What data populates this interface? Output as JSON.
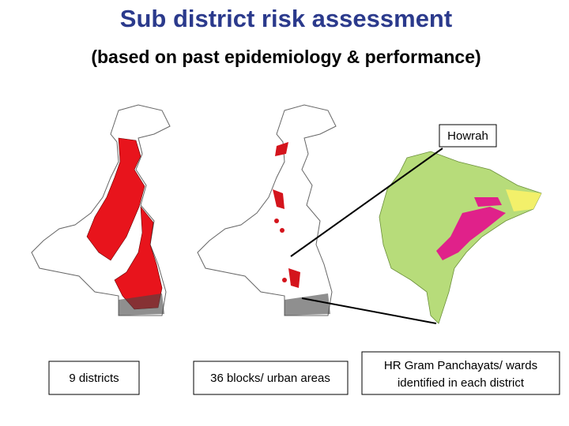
{
  "header": {
    "title": "Sub district risk assessment",
    "subtitle": "(based on past epidemiology & performance)"
  },
  "maps": [
    {
      "caption": "9 districts"
    },
    {
      "caption": "36 blocks/ urban areas"
    },
    {
      "caption_lines": [
        "HR Gram Panchayats/ wards",
        "identified in each district"
      ],
      "callout": "Howrah"
    }
  ]
}
